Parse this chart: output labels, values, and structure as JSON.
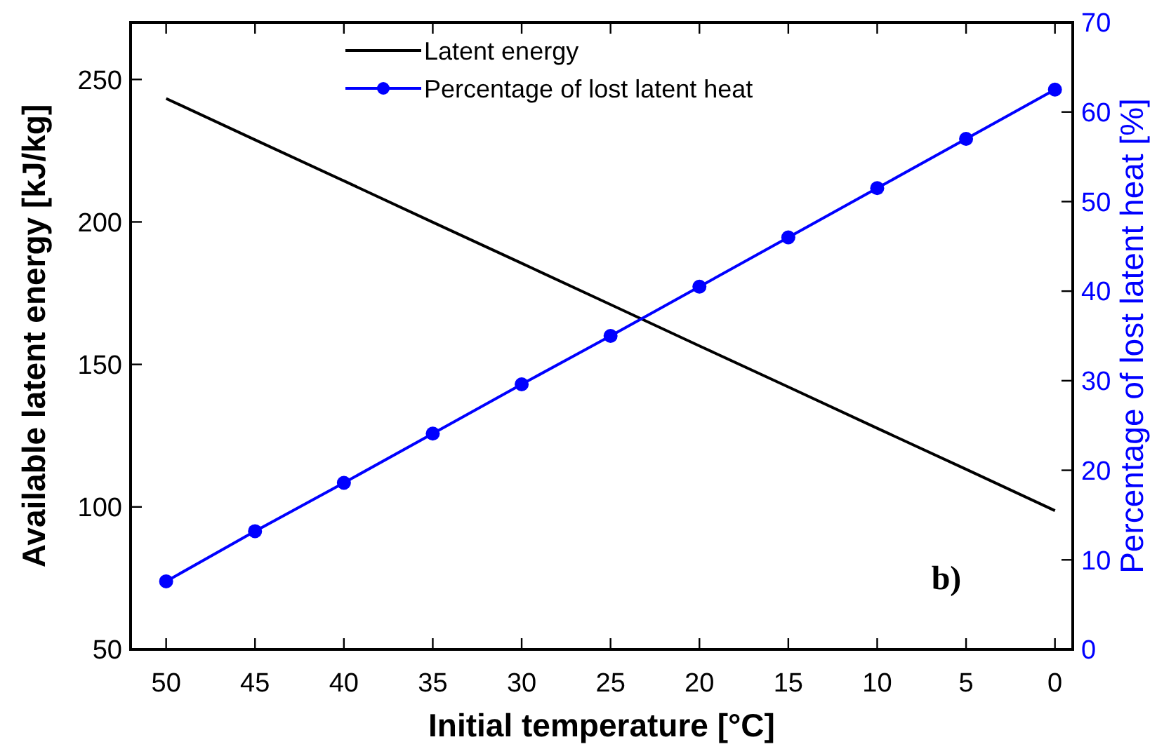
{
  "chart_data": {
    "type": "line",
    "xlabel": "Initial temperature [°C]",
    "ylabel": "Available latent energy [kJ/kg]",
    "y2label": "Percentage of lost latent heat [%]",
    "x": [
      50,
      45,
      40,
      35,
      30,
      25,
      20,
      15,
      10,
      5,
      0
    ],
    "xlim": [
      52,
      -1
    ],
    "xticks": [
      50,
      45,
      40,
      35,
      30,
      25,
      20,
      15,
      10,
      5,
      0
    ],
    "ylim": [
      50,
      270
    ],
    "yticks": [
      50,
      100,
      150,
      200,
      250
    ],
    "y2lim": [
      0,
      70
    ],
    "y2ticks": [
      0,
      10,
      20,
      30,
      40,
      50,
      60,
      70
    ],
    "legend": "top",
    "grid": false,
    "series": [
      {
        "name": "Latent energy",
        "color": "#000000",
        "marker": "none",
        "values": [
          243.3,
          228.8,
          214.4,
          199.9,
          185.5,
          171.0,
          156.5,
          142.1,
          127.6,
          113.2,
          98.7
        ]
      },
      {
        "name": "Percentage of lost latent heat",
        "color": "#0000ff",
        "marker": "circle",
        "axis": "y2",
        "values": [
          7.6,
          13.2,
          18.6,
          24.1,
          29.6,
          35.0,
          40.5,
          46.0,
          51.5,
          57.0,
          62.5
        ]
      }
    ],
    "annotations": [
      "b)"
    ]
  }
}
